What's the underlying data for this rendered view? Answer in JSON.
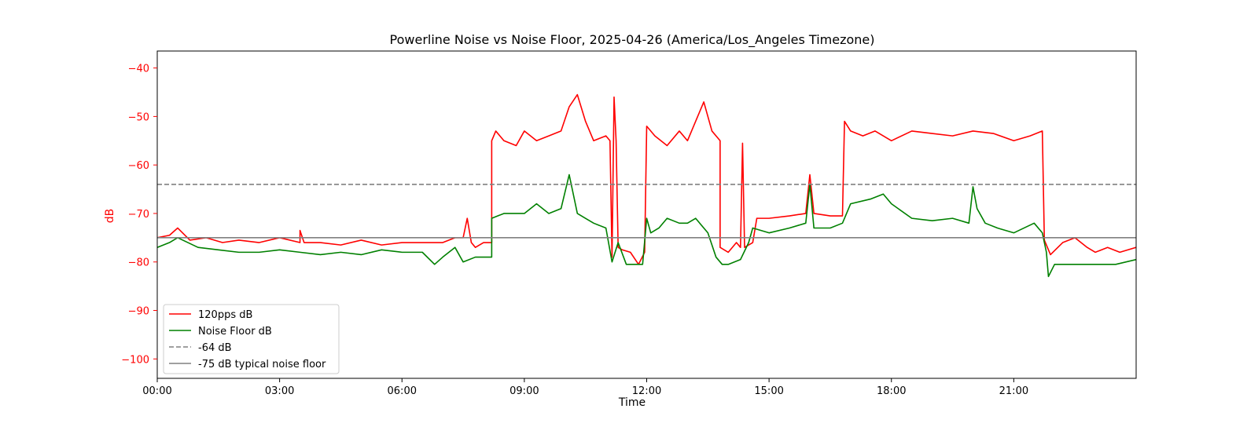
{
  "chart_data": {
    "type": "line",
    "title": "Powerline Noise vs Noise Floor, 2025-04-26 (America/Los_Angeles Timezone)",
    "xlabel": "Time",
    "ylabel": "dB",
    "xlim": [
      0,
      24
    ],
    "ylim": [
      -104,
      -36.5
    ],
    "x_ticks": [
      {
        "value": 0,
        "label": "00:00"
      },
      {
        "value": 3,
        "label": "03:00"
      },
      {
        "value": 6,
        "label": "06:00"
      },
      {
        "value": 9,
        "label": "09:00"
      },
      {
        "value": 12,
        "label": "12:00"
      },
      {
        "value": 15,
        "label": "15:00"
      },
      {
        "value": 18,
        "label": "18:00"
      },
      {
        "value": 21,
        "label": "21:00"
      }
    ],
    "y_ticks": [
      {
        "value": -40,
        "label": "−40"
      },
      {
        "value": -50,
        "label": "−50"
      },
      {
        "value": -60,
        "label": "−60"
      },
      {
        "value": -70,
        "label": "−70"
      },
      {
        "value": -80,
        "label": "−80"
      },
      {
        "value": -90,
        "label": "−90"
      },
      {
        "value": -100,
        "label": "−100"
      }
    ],
    "grid": false,
    "legend_position": "lower-left",
    "series": [
      {
        "name": "120pps dB",
        "color": "#ff0000",
        "style": "solid",
        "x": [
          0,
          0.3,
          0.5,
          0.8,
          1.2,
          1.6,
          2.0,
          2.5,
          3.0,
          3.5,
          3.5,
          3.6,
          4.0,
          4.5,
          5.0,
          5.5,
          6.0,
          6.5,
          7.0,
          7.3,
          7.5,
          7.6,
          7.7,
          7.8,
          8.0,
          8.2,
          8.2,
          8.3,
          8.5,
          8.8,
          9.0,
          9.3,
          9.6,
          9.9,
          10.1,
          10.3,
          10.5,
          10.7,
          11.0,
          11.1,
          11.15,
          11.2,
          11.25,
          11.3,
          11.4,
          11.6,
          11.8,
          11.95,
          12.0,
          12.2,
          12.5,
          12.8,
          13.0,
          13.2,
          13.4,
          13.6,
          13.8,
          13.8,
          14.0,
          14.2,
          14.3,
          14.35,
          14.4,
          14.6,
          14.7,
          15.0,
          15.5,
          15.9,
          16.0,
          16.1,
          16.5,
          16.8,
          16.85,
          17.0,
          17.3,
          17.6,
          18.0,
          18.5,
          19.0,
          19.5,
          20.0,
          20.5,
          21.0,
          21.4,
          21.7,
          21.75,
          21.9,
          22.2,
          22.5,
          22.8,
          23.0,
          23.3,
          23.6,
          24.0
        ],
        "values": [
          -75,
          -74.5,
          -73,
          -75.5,
          -75,
          -76,
          -75.5,
          -76,
          -75,
          -76,
          -73.5,
          -76,
          -76,
          -76.5,
          -75.5,
          -76.5,
          -76,
          -76,
          -76,
          -75,
          -75,
          -71,
          -76,
          -77,
          -76,
          -76,
          -55,
          -53,
          -55,
          -56,
          -53,
          -55,
          -54,
          -53,
          -48,
          -45.5,
          -51,
          -55,
          -54,
          -55,
          -79,
          -46,
          -55,
          -77,
          -77.5,
          -78,
          -80.5,
          -78,
          -52,
          -54,
          -56,
          -53,
          -55,
          -51,
          -47,
          -53,
          -55,
          -77,
          -78,
          -76,
          -77,
          -55.5,
          -77,
          -76,
          -71,
          -71,
          -70.5,
          -70,
          -62,
          -70,
          -70.5,
          -70.5,
          -51,
          -53,
          -54,
          -53,
          -55,
          -53,
          -53.5,
          -54,
          -53,
          -53.5,
          -55,
          -54,
          -53,
          -75.5,
          -78.5,
          -76,
          -75,
          -77,
          -78,
          -77,
          -78,
          -77
        ]
      },
      {
        "name": "Noise Floor dB",
        "color": "#008000",
        "style": "solid",
        "x": [
          0,
          0.3,
          0.5,
          1.0,
          1.5,
          2.0,
          2.5,
          3.0,
          3.5,
          4.0,
          4.5,
          5.0,
          5.5,
          6.0,
          6.5,
          6.8,
          7.0,
          7.3,
          7.5,
          7.8,
          8.0,
          8.2,
          8.2,
          8.5,
          9.0,
          9.3,
          9.6,
          9.9,
          10.1,
          10.3,
          10.5,
          10.7,
          11.0,
          11.15,
          11.3,
          11.5,
          11.9,
          12.0,
          12.1,
          12.3,
          12.5,
          12.8,
          13.0,
          13.2,
          13.5,
          13.7,
          13.85,
          14.0,
          14.3,
          14.5,
          14.6,
          15.0,
          15.5,
          15.9,
          16.0,
          16.1,
          16.5,
          16.8,
          17.0,
          17.5,
          17.8,
          18.0,
          18.5,
          19.0,
          19.5,
          19.9,
          20.0,
          20.1,
          20.3,
          20.6,
          21.0,
          21.5,
          21.7,
          21.8,
          21.85,
          22.0,
          22.5,
          23.0,
          23.5,
          24.0
        ],
        "values": [
          -77,
          -76,
          -75,
          -77,
          -77.5,
          -78,
          -78,
          -77.5,
          -78,
          -78.5,
          -78,
          -78.5,
          -77.5,
          -78,
          -78,
          -80.5,
          -79,
          -77,
          -80,
          -79,
          -79,
          -79,
          -71,
          -70,
          -70,
          -68,
          -70,
          -69,
          -62,
          -70,
          -71,
          -72,
          -73,
          -80,
          -76,
          -80.5,
          -80.5,
          -71,
          -74,
          -73,
          -71,
          -72,
          -72,
          -71,
          -74,
          -79,
          -80.5,
          -80.5,
          -79.5,
          -76,
          -73,
          -74,
          -73,
          -72,
          -64,
          -73,
          -73,
          -72,
          -68,
          -67,
          -66,
          -68,
          -71,
          -71.5,
          -71,
          -72,
          -64.5,
          -69,
          -72,
          -73,
          -74,
          -72,
          -74,
          -78,
          -83,
          -80.5,
          -80.5,
          -80.5,
          -80.5,
          -79.5
        ]
      },
      {
        "name": "-64 dB",
        "color": "#808080",
        "style": "dashed",
        "constant": -64
      },
      {
        "name": "-75 dB typical noise floor",
        "color": "#808080",
        "style": "solid",
        "constant": -75
      }
    ]
  },
  "colors": {
    "axis_label": "#ff0000",
    "frame": "#000000"
  }
}
